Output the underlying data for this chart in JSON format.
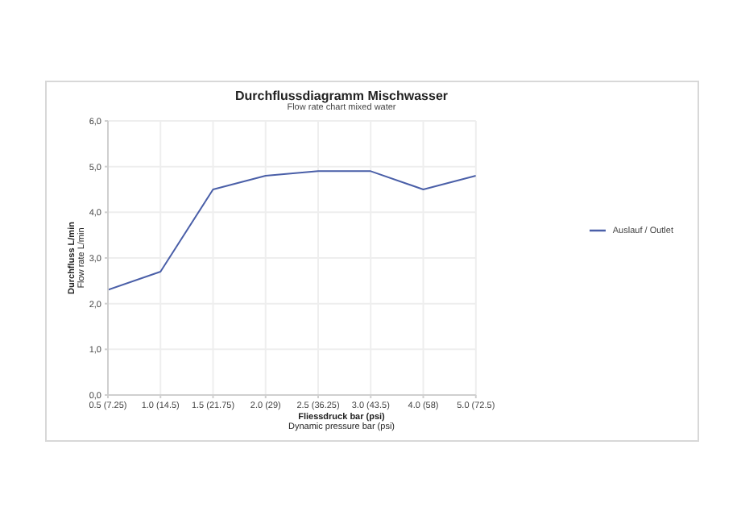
{
  "chart_data": {
    "type": "line",
    "title": "Durchflussdiagramm Mischwasser",
    "subtitle": "Flow rate chart mixed water",
    "xlabel": "Fliessdruck bar (psi)\nDynamic pressure bar (psi)",
    "ylabel": "Durchfluss L/min\nFlow rate L/min",
    "categories": [
      "0.5 (7.25)",
      "1.0 (14.5)",
      "1.5 (21.75)",
      "2.0 (29)",
      "2.5 (36.25)",
      "3.0 (43.5)",
      "4.0 (58)",
      "5.0 (72.5)"
    ],
    "series": [
      {
        "name": "Auslauf / Outlet",
        "color": "#4a5fa8",
        "values": [
          2.3,
          2.7,
          4.5,
          4.8,
          4.9,
          4.9,
          4.5,
          4.8
        ]
      }
    ],
    "ylim": [
      0,
      6
    ],
    "yticks": [
      {
        "value": 0,
        "label": "0,0"
      },
      {
        "value": 1,
        "label": "1,0"
      },
      {
        "value": 2,
        "label": "2,0"
      },
      {
        "value": 3,
        "label": "3,0"
      },
      {
        "value": 4,
        "label": "4,0"
      },
      {
        "value": 5,
        "label": "5,0"
      },
      {
        "value": 6,
        "label": "6,0"
      }
    ],
    "grid": true,
    "legend": "right",
    "marker": "none",
    "line_style": "solid"
  }
}
